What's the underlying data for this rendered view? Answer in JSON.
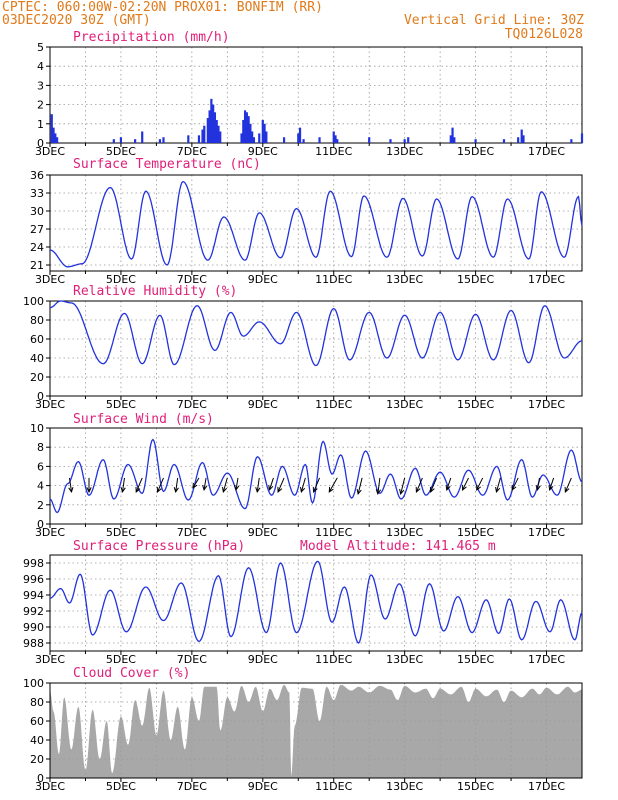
{
  "header": {
    "line1": "CPTEC:   060:00W-02:20N   PROX01: BONFIM (RR)",
    "line2": "03DEC2020 30Z (GMT)",
    "grid_note": "Vertical Grid Line: 30Z",
    "code": "TQ0126L028"
  },
  "colors": {
    "header": "#e07a1a",
    "title": "#e0207a",
    "line": "#2233dd",
    "cloud": "#a8a8a8",
    "wind_arrow": "#000000"
  },
  "chart_data": [
    {
      "id": "precip",
      "type": "bar",
      "title": "Precipitation (mm/h)",
      "xlabels": [
        "3DEC",
        "5DEC",
        "7DEC",
        "9DEC",
        "11DEC",
        "13DEC",
        "15DEC",
        "17DEC"
      ],
      "xrange_days": [
        3,
        18
      ],
      "ylim": [
        0,
        5
      ],
      "yticks": [
        0,
        1,
        2,
        3,
        4,
        5
      ],
      "grid": true,
      "events": [
        [
          3.05,
          1.5
        ],
        [
          3.1,
          0.8
        ],
        [
          3.15,
          0.5
        ],
        [
          3.2,
          0.3
        ],
        [
          4.8,
          0.2
        ],
        [
          5.0,
          0.3
        ],
        [
          5.4,
          0.2
        ],
        [
          5.6,
          0.6
        ],
        [
          6.1,
          0.2
        ],
        [
          6.2,
          0.3
        ],
        [
          6.9,
          0.4
        ],
        [
          7.2,
          0.4
        ],
        [
          7.3,
          0.7
        ],
        [
          7.35,
          0.9
        ],
        [
          7.45,
          1.3
        ],
        [
          7.5,
          1.7
        ],
        [
          7.55,
          2.3
        ],
        [
          7.6,
          2.0
        ],
        [
          7.65,
          1.6
        ],
        [
          7.7,
          1.2
        ],
        [
          7.75,
          0.9
        ],
        [
          7.8,
          0.6
        ],
        [
          8.4,
          0.5
        ],
        [
          8.45,
          1.2
        ],
        [
          8.5,
          1.7
        ],
        [
          8.55,
          1.6
        ],
        [
          8.6,
          1.4
        ],
        [
          8.65,
          1.0
        ],
        [
          8.7,
          0.6
        ],
        [
          8.75,
          0.3
        ],
        [
          8.9,
          0.5
        ],
        [
          9.0,
          1.2
        ],
        [
          9.05,
          1.0
        ],
        [
          9.1,
          0.6
        ],
        [
          9.6,
          0.3
        ],
        [
          10.0,
          0.5
        ],
        [
          10.05,
          0.8
        ],
        [
          10.15,
          0.2
        ],
        [
          10.6,
          0.3
        ],
        [
          11.0,
          0.6
        ],
        [
          11.05,
          0.4
        ],
        [
          11.1,
          0.2
        ],
        [
          12.0,
          0.3
        ],
        [
          12.6,
          0.2
        ],
        [
          13.0,
          0.2
        ],
        [
          13.1,
          0.3
        ],
        [
          14.3,
          0.4
        ],
        [
          14.35,
          0.8
        ],
        [
          14.4,
          0.3
        ],
        [
          15.0,
          0.2
        ],
        [
          15.8,
          0.2
        ],
        [
          16.2,
          0.3
        ],
        [
          16.3,
          0.7
        ],
        [
          16.35,
          0.4
        ],
        [
          17.7,
          0.2
        ],
        [
          18.0,
          0.5
        ]
      ]
    },
    {
      "id": "temp",
      "type": "line",
      "title": "Surface Temperature (nC)",
      "xlabels": [
        "3DEC",
        "5DEC",
        "7DEC",
        "9DEC",
        "11DEC",
        "13DEC",
        "15DEC",
        "17DEC"
      ],
      "xrange_days": [
        3,
        18
      ],
      "ylim": [
        20,
        36
      ],
      "yticks": [
        21,
        24,
        27,
        30,
        33,
        36
      ],
      "grid": true,
      "minmax": [
        [
          3.0,
          23.5
        ],
        [
          3.5,
          20.7
        ],
        [
          3.9,
          21.2
        ],
        [
          4.7,
          33.9
        ],
        [
          5.3,
          22.0
        ],
        [
          5.7,
          33.3
        ],
        [
          6.3,
          21.0
        ],
        [
          6.75,
          34.9
        ],
        [
          7.45,
          21.8
        ],
        [
          7.9,
          29.0
        ],
        [
          8.5,
          21.8
        ],
        [
          8.9,
          29.7
        ],
        [
          9.5,
          22.2
        ],
        [
          9.95,
          30.4
        ],
        [
          10.5,
          22.3
        ],
        [
          10.9,
          33.3
        ],
        [
          11.5,
          22.4
        ],
        [
          11.85,
          32.5
        ],
        [
          12.5,
          22.3
        ],
        [
          12.95,
          32.1
        ],
        [
          13.5,
          22.5
        ],
        [
          13.9,
          32.0
        ],
        [
          14.5,
          22.0
        ],
        [
          14.9,
          32.4
        ],
        [
          15.5,
          22.3
        ],
        [
          15.9,
          32.0
        ],
        [
          16.5,
          22.0
        ],
        [
          16.85,
          33.2
        ],
        [
          17.5,
          22.3
        ],
        [
          17.9,
          32.4
        ],
        [
          18.0,
          27.5
        ]
      ]
    },
    {
      "id": "rh",
      "type": "line",
      "title": "Relative Humidity (%)",
      "xlabels": [
        "3DEC",
        "5DEC",
        "7DEC",
        "9DEC",
        "11DEC",
        "13DEC",
        "15DEC",
        "17DEC"
      ],
      "xrange_days": [
        3,
        18
      ],
      "ylim": [
        0,
        100
      ],
      "yticks": [
        0,
        20,
        40,
        60,
        80,
        100
      ],
      "grid": true,
      "minmax": [
        [
          3.0,
          93
        ],
        [
          3.3,
          100
        ],
        [
          3.6,
          98
        ],
        [
          4.5,
          34
        ],
        [
          5.1,
          87
        ],
        [
          5.6,
          34
        ],
        [
          6.1,
          85
        ],
        [
          6.5,
          33
        ],
        [
          7.15,
          95
        ],
        [
          7.65,
          48
        ],
        [
          8.1,
          88
        ],
        [
          8.45,
          63
        ],
        [
          8.9,
          78
        ],
        [
          9.5,
          55
        ],
        [
          9.95,
          88
        ],
        [
          10.5,
          32
        ],
        [
          11.0,
          92
        ],
        [
          11.45,
          38
        ],
        [
          12.0,
          88
        ],
        [
          12.5,
          40
        ],
        [
          13.0,
          85
        ],
        [
          13.5,
          40
        ],
        [
          14.0,
          88
        ],
        [
          14.5,
          38
        ],
        [
          15.0,
          86
        ],
        [
          15.5,
          38
        ],
        [
          16.0,
          90
        ],
        [
          16.5,
          35
        ],
        [
          16.95,
          95
        ],
        [
          17.5,
          40
        ],
        [
          18.0,
          58
        ]
      ]
    },
    {
      "id": "wind",
      "type": "line",
      "title": "Surface Wind (m/s)",
      "xlabels": [
        "3DEC",
        "5DEC",
        "7DEC",
        "9DEC",
        "11DEC",
        "13DEC",
        "15DEC",
        "17DEC"
      ],
      "xrange_days": [
        3,
        18
      ],
      "ylim": [
        0,
        10
      ],
      "yticks": [
        0,
        2,
        4,
        6,
        8,
        10
      ],
      "grid": true,
      "minmax": [
        [
          3.0,
          2.6
        ],
        [
          3.2,
          1.2
        ],
        [
          3.5,
          4.2
        ],
        [
          3.8,
          6.5
        ],
        [
          4.1,
          3.0
        ],
        [
          4.5,
          6.7
        ],
        [
          4.8,
          2.6
        ],
        [
          5.2,
          6.2
        ],
        [
          5.6,
          3.2
        ],
        [
          5.9,
          8.8
        ],
        [
          6.2,
          3.4
        ],
        [
          6.5,
          6.2
        ],
        [
          6.9,
          2.5
        ],
        [
          7.3,
          6.4
        ],
        [
          7.6,
          3.0
        ],
        [
          8.0,
          5.3
        ],
        [
          8.5,
          1.6
        ],
        [
          8.85,
          7.0
        ],
        [
          9.25,
          3.0
        ],
        [
          9.55,
          6.0
        ],
        [
          9.9,
          3.0
        ],
        [
          10.2,
          6.2
        ],
        [
          10.4,
          2.2
        ],
        [
          10.7,
          8.6
        ],
        [
          10.95,
          5.2
        ],
        [
          11.2,
          7.2
        ],
        [
          11.5,
          2.7
        ],
        [
          11.9,
          7.6
        ],
        [
          12.3,
          3.2
        ],
        [
          12.6,
          5.2
        ],
        [
          12.9,
          2.6
        ],
        [
          13.3,
          5.8
        ],
        [
          13.6,
          3.0
        ],
        [
          14.0,
          5.4
        ],
        [
          14.4,
          2.8
        ],
        [
          14.8,
          5.6
        ],
        [
          15.2,
          3.0
        ],
        [
          15.6,
          6.0
        ],
        [
          15.9,
          2.5
        ],
        [
          16.3,
          6.7
        ],
        [
          16.6,
          2.8
        ],
        [
          16.9,
          5.1
        ],
        [
          17.3,
          3.0
        ],
        [
          17.7,
          7.7
        ],
        [
          18.0,
          4.4
        ]
      ],
      "arrows": [
        [
          3.55,
          2,
          -14
        ],
        [
          4.1,
          0,
          -14
        ],
        [
          5.1,
          -2,
          -14
        ],
        [
          5.6,
          -6,
          -14
        ],
        [
          6.2,
          -6,
          -14
        ],
        [
          6.6,
          -2,
          -14
        ],
        [
          7.2,
          -6,
          -10
        ],
        [
          7.4,
          -2,
          -12
        ],
        [
          8.0,
          -4,
          -14
        ],
        [
          8.3,
          -2,
          -12
        ],
        [
          8.9,
          -2,
          -14
        ],
        [
          9.3,
          -4,
          -12
        ],
        [
          9.6,
          -6,
          -14
        ],
        [
          10.2,
          -4,
          -14
        ],
        [
          10.6,
          -6,
          -14
        ],
        [
          11.1,
          -8,
          -14
        ],
        [
          11.8,
          -4,
          -16
        ],
        [
          12.3,
          -2,
          -16
        ],
        [
          13.0,
          -4,
          -16
        ],
        [
          13.5,
          -6,
          -14
        ],
        [
          13.9,
          -6,
          -14
        ],
        [
          14.3,
          -4,
          -12
        ],
        [
          14.8,
          -6,
          -12
        ],
        [
          15.2,
          -6,
          -12
        ],
        [
          15.7,
          -4,
          -14
        ],
        [
          16.2,
          -6,
          -12
        ],
        [
          16.8,
          -2,
          -12
        ],
        [
          17.2,
          -4,
          -12
        ],
        [
          17.7,
          -6,
          -14
        ]
      ]
    },
    {
      "id": "pressure",
      "type": "line",
      "title": "Surface Pressure (hPa)",
      "subtitle": "Model Altitude: 141.465 m",
      "xlabels": [
        "3DEC",
        "5DEC",
        "7DEC",
        "9DEC",
        "11DEC",
        "13DEC",
        "15DEC",
        "17DEC"
      ],
      "xrange_days": [
        3,
        18
      ],
      "ylim": [
        987,
        999
      ],
      "yticks": [
        988,
        990,
        992,
        994,
        996,
        998
      ],
      "grid": true,
      "minmax": [
        [
          3.0,
          993.6
        ],
        [
          3.3,
          994.8
        ],
        [
          3.55,
          993.0
        ],
        [
          3.85,
          996.6
        ],
        [
          4.2,
          989.0
        ],
        [
          4.7,
          994.6
        ],
        [
          5.15,
          989.4
        ],
        [
          5.7,
          995.0
        ],
        [
          6.2,
          990.8
        ],
        [
          6.7,
          995.5
        ],
        [
          7.2,
          988.2
        ],
        [
          7.75,
          996.4
        ],
        [
          8.1,
          988.8
        ],
        [
          8.6,
          997.4
        ],
        [
          9.1,
          989.3
        ],
        [
          9.5,
          998.0
        ],
        [
          9.95,
          989.3
        ],
        [
          10.55,
          998.2
        ],
        [
          10.95,
          990.6
        ],
        [
          11.3,
          995.0
        ],
        [
          11.7,
          988.0
        ],
        [
          12.05,
          996.5
        ],
        [
          12.45,
          991.0
        ],
        [
          12.85,
          995.4
        ],
        [
          13.3,
          988.9
        ],
        [
          13.7,
          995.4
        ],
        [
          14.1,
          989.5
        ],
        [
          14.5,
          993.8
        ],
        [
          14.9,
          989.3
        ],
        [
          15.3,
          993.4
        ],
        [
          15.65,
          989.2
        ],
        [
          15.95,
          993.5
        ],
        [
          16.3,
          988.4
        ],
        [
          16.7,
          993.2
        ],
        [
          17.1,
          989.4
        ],
        [
          17.4,
          993.4
        ],
        [
          17.8,
          988.4
        ],
        [
          18.0,
          991.8
        ]
      ]
    },
    {
      "id": "cloud",
      "type": "area",
      "title": "Cloud Cover (%)",
      "xlabels": [
        "3DEC",
        "5DEC",
        "7DEC",
        "9DEC",
        "11DEC",
        "13DEC",
        "15DEC",
        "17DEC"
      ],
      "xrange_days": [
        3,
        18
      ],
      "ylim": [
        0,
        100
      ],
      "yticks": [
        0,
        20,
        40,
        60,
        80,
        100
      ],
      "grid": true,
      "minmax": [
        [
          3.0,
          92
        ],
        [
          3.1,
          70
        ],
        [
          3.25,
          25
        ],
        [
          3.4,
          85
        ],
        [
          3.6,
          30
        ],
        [
          3.8,
          75
        ],
        [
          4.0,
          8
        ],
        [
          4.2,
          72
        ],
        [
          4.4,
          20
        ],
        [
          4.6,
          60
        ],
        [
          4.75,
          5
        ],
        [
          5.0,
          65
        ],
        [
          5.2,
          35
        ],
        [
          5.4,
          82
        ],
        [
          5.6,
          55
        ],
        [
          5.8,
          95
        ],
        [
          6.0,
          45
        ],
        [
          6.2,
          92
        ],
        [
          6.4,
          40
        ],
        [
          6.6,
          75
        ],
        [
          6.8,
          30
        ],
        [
          7.0,
          85
        ],
        [
          7.2,
          60
        ],
        [
          7.35,
          96
        ],
        [
          7.7,
          96
        ],
        [
          7.8,
          50
        ],
        [
          8.0,
          85
        ],
        [
          8.2,
          70
        ],
        [
          8.4,
          97
        ],
        [
          8.6,
          80
        ],
        [
          8.8,
          96
        ],
        [
          9.0,
          70
        ],
        [
          9.2,
          94
        ],
        [
          9.4,
          82
        ],
        [
          9.6,
          98
        ],
        [
          9.75,
          90
        ],
        [
          9.8,
          2
        ],
        [
          9.9,
          55
        ],
        [
          10.1,
          95
        ],
        [
          10.4,
          94
        ],
        [
          10.6,
          60
        ],
        [
          10.8,
          96
        ],
        [
          11.0,
          82
        ],
        [
          11.2,
          98
        ],
        [
          11.5,
          92
        ],
        [
          11.7,
          96
        ],
        [
          12.0,
          90
        ],
        [
          12.3,
          97
        ],
        [
          12.6,
          93
        ],
        [
          12.8,
          82
        ],
        [
          13.0,
          97
        ],
        [
          13.3,
          90
        ],
        [
          13.6,
          94
        ],
        [
          13.8,
          84
        ],
        [
          14.0,
          94
        ],
        [
          14.3,
          88
        ],
        [
          14.6,
          96
        ],
        [
          14.8,
          80
        ],
        [
          15.0,
          94
        ],
        [
          15.3,
          86
        ],
        [
          15.6,
          93
        ],
        [
          15.8,
          80
        ],
        [
          16.0,
          92
        ],
        [
          16.3,
          85
        ],
        [
          16.6,
          94
        ],
        [
          16.8,
          88
        ],
        [
          17.0,
          95
        ],
        [
          17.3,
          88
        ],
        [
          17.6,
          96
        ],
        [
          17.8,
          90
        ],
        [
          18.0,
          93
        ]
      ]
    }
  ]
}
